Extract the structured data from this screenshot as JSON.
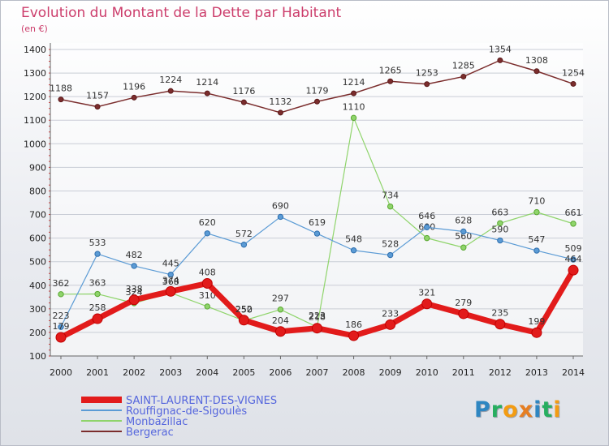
{
  "title": "Evolution du Montant de la Dette par Habitant",
  "unit_label": "(en €)",
  "logo": {
    "letters": [
      "P",
      "r",
      "o",
      "x",
      "i",
      "t",
      "i"
    ],
    "colors": [
      "#2e86c1",
      "#27ae60",
      "#f39c12",
      "#e67e22",
      "#2e86c1",
      "#27ae60",
      "#f39c12"
    ]
  },
  "chart_data": {
    "type": "line",
    "title": "Evolution du Montant de la Dette par Habitant",
    "ylabel": "(en €)",
    "xlabel": "",
    "ylim": [
      100,
      1400
    ],
    "y_ticks": [
      100,
      200,
      300,
      400,
      500,
      600,
      700,
      800,
      900,
      1000,
      1100,
      1200,
      1300,
      1400
    ],
    "x": [
      "2000",
      "2001",
      "2002",
      "2003",
      "2004",
      "2005",
      "2006",
      "2007",
      "2008",
      "2009",
      "2010",
      "2011",
      "2012",
      "2013",
      "2014"
    ],
    "grid": true,
    "legend_placement": "bottom-left",
    "series": [
      {
        "name": "Bergerac",
        "color": "#7b2d2d",
        "values": [
          1188,
          1157,
          1196,
          1224,
          1214,
          1176,
          1132,
          1179,
          1214,
          1265,
          1253,
          1285,
          1354,
          1308,
          1254
        ],
        "data_labels": [
          "1188",
          "1157",
          "1196",
          "1224",
          "1214",
          "1176",
          "1132",
          "1179",
          "1214",
          "1265",
          "1253",
          "1285",
          "1354",
          "1308",
          "1254"
        ]
      },
      {
        "name": "Monbazillac",
        "color": "#8fd46b",
        "values": [
          362,
          363,
          324,
          368,
          310,
          250,
          297,
          223,
          1110,
          734,
          600,
          560,
          663,
          710,
          661
        ],
        "data_labels": [
          "362",
          "363",
          "324",
          "368",
          "310",
          "250",
          "297",
          "223",
          "1110",
          "734",
          "600",
          "560",
          "663",
          "710",
          "661"
        ]
      },
      {
        "name": "Rouffignac-de-Sigoulès",
        "color": "#5b9bd5",
        "values": [
          223,
          533,
          482,
          445,
          620,
          572,
          690,
          619,
          548,
          528,
          646,
          628,
          590,
          547,
          509
        ],
        "data_labels": [
          "223",
          "533",
          "482",
          "445",
          "620",
          "572",
          "690",
          "619",
          "548",
          "528",
          "646",
          "628",
          "590",
          "547",
          "509"
        ]
      },
      {
        "name": "SAINT-LAURENT-DES-VIGNES",
        "color": "#e21b1b",
        "values": [
          179,
          258,
          338,
          374,
          408,
          252,
          204,
          218,
          186,
          233,
          321,
          279,
          235,
          199,
          464
        ],
        "data_labels": [
          "179",
          "258",
          "338",
          "374",
          "408",
          "252",
          "204",
          "218",
          "186",
          "233",
          "321",
          "279",
          "235",
          "199",
          "464"
        ]
      }
    ],
    "legend_order": [
      "SAINT-LAURENT-DES-VIGNES",
      "Rouffignac-de-Sigoulès",
      "Monbazillac",
      "Bergerac"
    ]
  }
}
